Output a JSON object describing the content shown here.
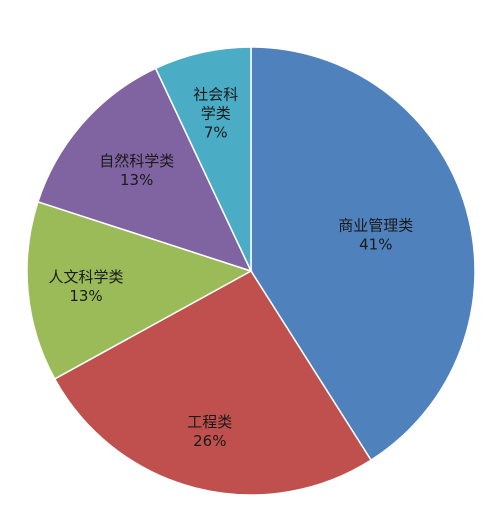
{
  "chart_data": {
    "type": "pie",
    "start_angle_deg": 0,
    "direction": "clockwise",
    "slices": [
      {
        "label_lines": [
          "商业管理类"
        ],
        "value_label": "41%",
        "value": 41,
        "color": "#4F81BD"
      },
      {
        "label_lines": [
          "工程类"
        ],
        "value_label": "26%",
        "value": 26,
        "color": "#C0504D"
      },
      {
        "label_lines": [
          "人文科学类"
        ],
        "value_label": "13%",
        "value": 13,
        "color": "#9BBB59"
      },
      {
        "label_lines": [
          "自然科学类"
        ],
        "value_label": "13%",
        "value": 13,
        "color": "#8064A2"
      },
      {
        "label_lines": [
          "社会科",
          "学类"
        ],
        "value_label": "7%",
        "value": 7,
        "color": "#4BACC6"
      }
    ]
  }
}
